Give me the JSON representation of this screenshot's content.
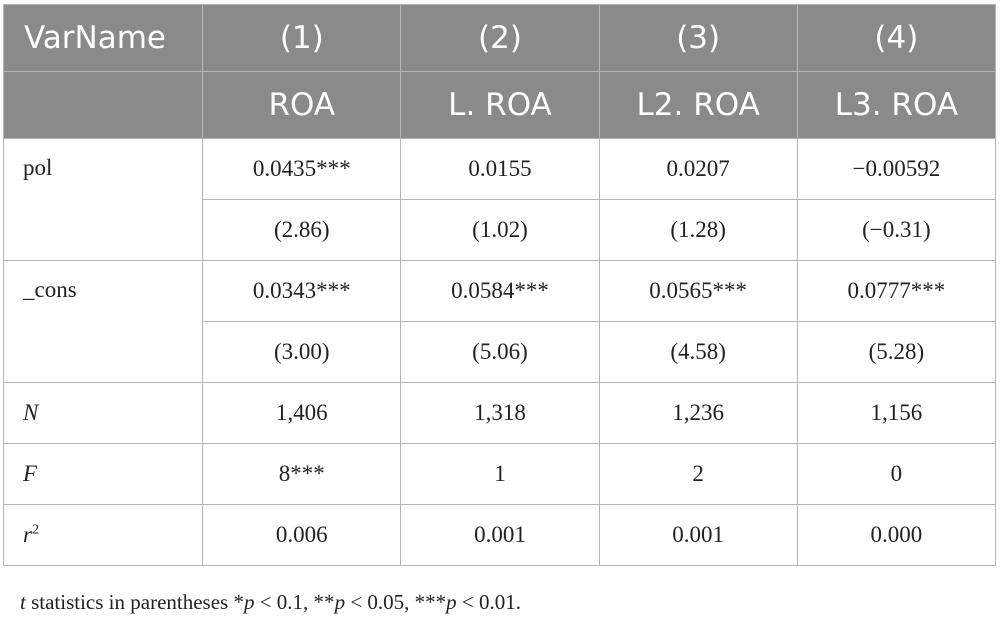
{
  "header": {
    "row1": [
      "VarName",
      "(1)",
      "(2)",
      "(3)",
      "(4)"
    ],
    "row2": [
      "ROA",
      "L. ROA",
      "L2. ROA",
      "L3. ROA"
    ]
  },
  "rows": {
    "pol": {
      "label": "pol",
      "coef": [
        "0.0435***",
        "0.0155",
        "0.0207",
        "−0.00592"
      ],
      "tstat": [
        "(2.86)",
        "(1.02)",
        "(1.28)",
        "(−0.31)"
      ]
    },
    "cons": {
      "label": "_cons",
      "coef": [
        "0.0343***",
        "0.0584***",
        "0.0565***",
        "0.0777***"
      ],
      "tstat": [
        "(3.00)",
        "(5.06)",
        "(4.58)",
        "(5.28)"
      ]
    },
    "n": {
      "label": "N",
      "values": [
        "1,406",
        "1,318",
        "1,236",
        "1,156"
      ]
    },
    "f": {
      "label": "F",
      "values": [
        "8***",
        "1",
        "2",
        "0"
      ]
    },
    "r2": {
      "label": "r",
      "sup": "2",
      "values": [
        "0.006",
        "0.001",
        "0.001",
        "0.000"
      ]
    }
  },
  "footnote": {
    "t": "t",
    "a": " statistics in parentheses *",
    "p1": "p",
    "b": " < 0.1, **",
    "p2": "p",
    "c": " < 0.05, ***",
    "p3": "p",
    "d": " < 0.01."
  }
}
